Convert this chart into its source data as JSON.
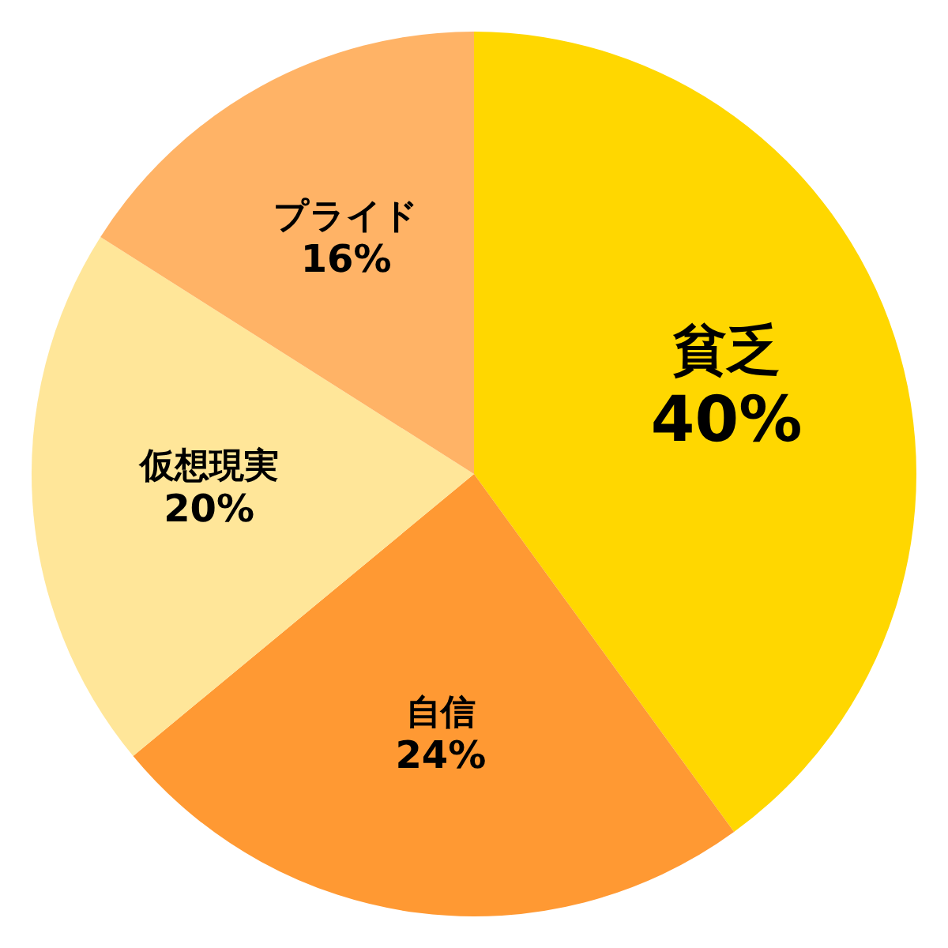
{
  "chart_data": {
    "type": "pie",
    "categories": [
      "貧乏",
      "自信",
      "仮想現実",
      "プライド"
    ],
    "values": [
      40,
      24,
      20,
      16
    ],
    "colors": [
      "#ffd700",
      "#ff9933",
      "#ffe699",
      "#ffb366"
    ],
    "value_labels": [
      "40%",
      "24%",
      "20%",
      "16%"
    ],
    "legend": false
  }
}
